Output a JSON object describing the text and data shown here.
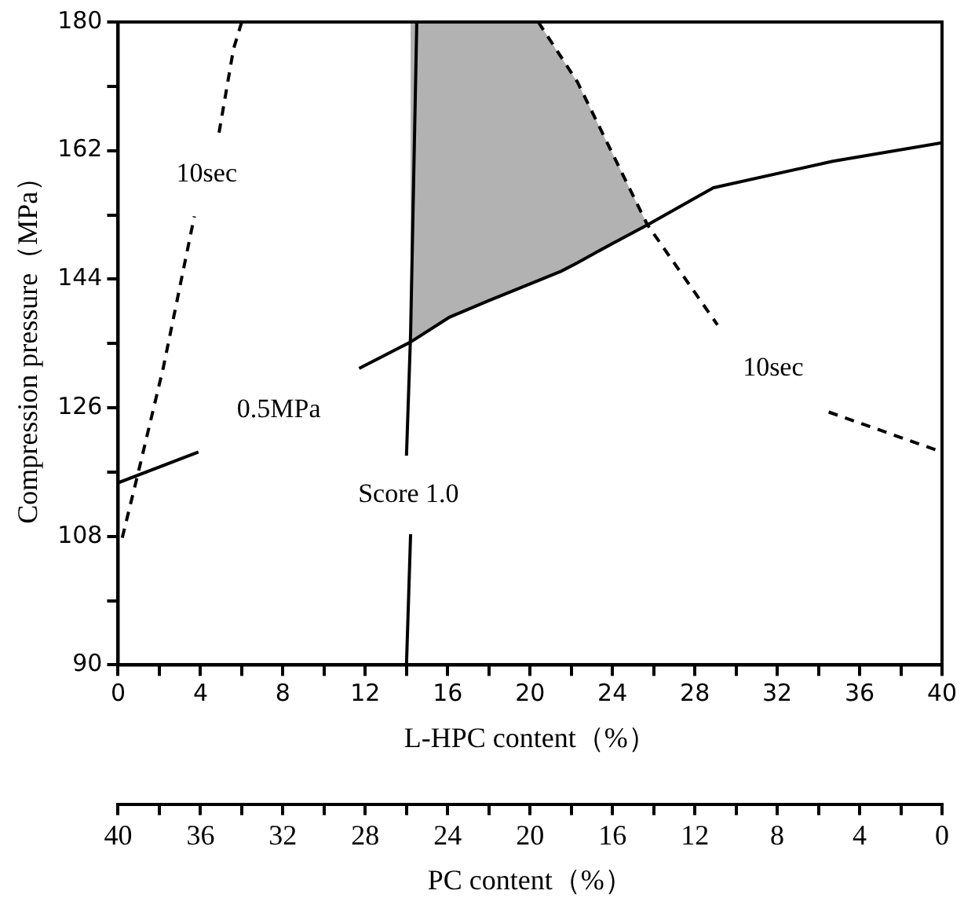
{
  "chart_data": {
    "type": "line",
    "xlabel": "L-HPC content（%）",
    "ylabel": "Compression pressure（MPa）",
    "x2label": "PC content（%）",
    "xlim": [
      0,
      40
    ],
    "ylim": [
      90,
      180
    ],
    "x2lim": [
      40,
      0
    ],
    "xticks": [
      0,
      {
        "value": 2,
        "label": null
      },
      4,
      {
        "value": 6,
        "label": null
      },
      8,
      {
        "value": 10,
        "label": null
      },
      12,
      {
        "value": 14,
        "label": null
      },
      16,
      {
        "value": 18,
        "label": null
      },
      20,
      {
        "value": 22,
        "label": null
      },
      24,
      {
        "value": 26,
        "label": null
      },
      28,
      {
        "value": 30,
        "label": null
      },
      32,
      {
        "value": 34,
        "label": null
      },
      36,
      {
        "value": 38,
        "label": null
      },
      40
    ],
    "x2ticks": [
      40,
      {
        "value": 38,
        "label": null
      },
      36,
      {
        "value": 34,
        "label": null
      },
      32,
      {
        "value": 30,
        "label": null
      },
      28,
      {
        "value": 26,
        "label": null
      },
      24,
      {
        "value": 22,
        "label": null
      },
      20,
      {
        "value": 18,
        "label": null
      },
      16,
      {
        "value": 14,
        "label": null
      },
      12,
      {
        "value": 10,
        "label": null
      },
      8,
      {
        "value": 6,
        "label": null
      },
      4,
      {
        "value": 2,
        "label": null
      },
      0
    ],
    "yticks": [
      90,
      {
        "value": 99,
        "label": null
      },
      108,
      {
        "value": 117,
        "label": null
      },
      126,
      {
        "value": 135,
        "label": null
      },
      144,
      {
        "value": 153,
        "label": null
      },
      162,
      {
        "value": 171,
        "label": null
      },
      180
    ],
    "grid": false,
    "legend": false,
    "marker": "none",
    "series": [
      {
        "name": "0.5MPa",
        "color": "#000000",
        "line_style": "solid",
        "x": [
          0,
          3.9,
          7.8,
          11.7,
          14.2,
          16.1,
          18,
          20.4,
          21.5,
          22.3,
          24,
          25.7,
          28.9,
          34.7,
          40
        ],
        "values": [
          115.5,
          119.8,
          null,
          131.5,
          135.2,
          138.7,
          141,
          143.8,
          145.1,
          146.3,
          149,
          151.6,
          156.8,
          160.5,
          163.1
        ],
        "lower": [
          null,
          null,
          null,
          null,
          135.2,
          138.7,
          141,
          143.8,
          145.1,
          146.3,
          149,
          151.6,
          null,
          null,
          null
        ],
        "upper": [
          null,
          null,
          null,
          null,
          180,
          180,
          180,
          180,
          175.1,
          171.6,
          161.6,
          151.6,
          null,
          null,
          null
        ]
      },
      {
        "name": "10sec",
        "color": "#000000",
        "line_style": "dashed",
        "x": [
          0.2,
          1,
          2.2,
          3.7,
          4.3,
          4.9,
          5.6,
          6
        ],
        "values": [
          107.8,
          117.2,
          131.7,
          152.8,
          null,
          164.5,
          176.2,
          180
        ]
      },
      {
        "name": "10sec",
        "color": "#000000",
        "line_style": "dashed",
        "x": [
          20.4,
          22.3,
          25.7,
          29.1,
          31.8,
          34.5,
          40
        ],
        "values": [
          180,
          171.6,
          151.6,
          137.6,
          null,
          125.4,
          119.8
        ]
      },
      {
        "name": "Score 1.0",
        "color": "#000000",
        "line_style": "solid",
        "x": [
          14,
          14.2,
          14.1,
          14,
          14.2,
          14.5
        ],
        "values": [
          90,
          108.3,
          null,
          119.3,
          136.4,
          180
        ]
      }
    ]
  }
}
